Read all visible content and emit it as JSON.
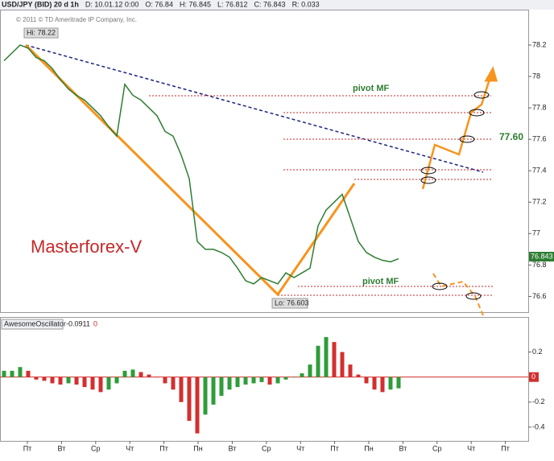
{
  "chart_data": {
    "type": "line",
    "header": [
      "USD/JPY (BID) 20 d 1h",
      "D: 10.01.12 0:00",
      "O: 76.84",
      "H: 76.845",
      "L: 76.812",
      "C: 76.843",
      "R: 0.033"
    ],
    "subtitle": "© 2011 © TD Ameritrade IP Company, Inc.",
    "annotations": {
      "high": "Hi: 78.22",
      "low": "Lo: 76.603",
      "brand": "Masterforex-V",
      "pivot_top": "pivot MF",
      "pivot_bottom": "pivot MF",
      "level": "77.60",
      "last_price": "76.843"
    },
    "x": [
      0,
      1,
      2,
      3,
      4,
      5,
      6,
      7,
      8,
      9,
      10,
      11,
      12,
      13,
      14,
      15,
      16,
      17,
      18,
      19,
      20,
      21,
      22,
      23,
      24,
      25,
      26,
      27,
      28,
      29,
      30,
      31,
      32,
      33,
      34,
      35,
      36,
      37,
      38,
      39,
      40,
      41,
      42,
      43,
      44,
      45,
      46,
      47,
      48,
      49
    ],
    "xlim": [
      -0.5,
      65.1
    ],
    "x_axis_labels": [
      "Пт",
      "Вт",
      "Ср",
      "Чт",
      "Пт",
      "Пн",
      "Вт",
      "Ср",
      "Чт",
      "Пт",
      "Пн",
      "Вт",
      "Ср",
      "Чт",
      "Пт"
    ],
    "series": [
      {
        "name": "USD/JPY",
        "color": "#2e7d32",
        "values": [
          78.1,
          78.15,
          78.2,
          78.18,
          78.12,
          78.1,
          78.05,
          77.98,
          77.92,
          77.88,
          77.85,
          77.8,
          77.75,
          77.68,
          77.62,
          77.95,
          77.88,
          77.85,
          77.8,
          77.75,
          77.65,
          77.62,
          77.5,
          77.35,
          76.95,
          76.9,
          76.9,
          76.88,
          76.85,
          76.78,
          76.7,
          76.68,
          76.72,
          76.7,
          76.68,
          76.75,
          76.72,
          76.75,
          76.78,
          77.05,
          77.15,
          77.2,
          77.25,
          77.1,
          76.95,
          76.88,
          76.85,
          76.83,
          76.82,
          76.84
        ]
      }
    ],
    "ylim": [
      76.5,
      78.42
    ],
    "yticks": [
      76.6,
      76.8,
      77,
      77.2,
      77.4,
      77.6,
      77.8,
      78,
      78.2
    ],
    "oscillator": {
      "type": "bar",
      "name": "AwesomeOscillator",
      "value_label": "-0.0911",
      "zero_label": "0",
      "up_color": "#2e9d3a",
      "down_color": "#d32f2f",
      "zero_line_color": "#d32f2f",
      "values": [
        0.05,
        0.05,
        0.08,
        0.05,
        -0.02,
        -0.03,
        -0.05,
        -0.06,
        -0.05,
        -0.06,
        -0.08,
        -0.1,
        -0.12,
        -0.1,
        -0.05,
        0.05,
        0.06,
        0.04,
        0.02,
        0.0,
        -0.05,
        -0.1,
        -0.2,
        -0.35,
        -0.45,
        -0.3,
        -0.22,
        -0.15,
        -0.1,
        -0.08,
        -0.06,
        -0.05,
        -0.04,
        -0.06,
        -0.05,
        -0.02,
        0.0,
        0.03,
        0.1,
        0.25,
        0.32,
        0.28,
        0.2,
        0.1,
        0.02,
        -0.05,
        -0.1,
        -0.12,
        -0.1,
        -0.09
      ],
      "ylim": [
        -0.51,
        0.39
      ],
      "yticks": [
        -0.4,
        -0.2,
        0.2
      ]
    }
  }
}
